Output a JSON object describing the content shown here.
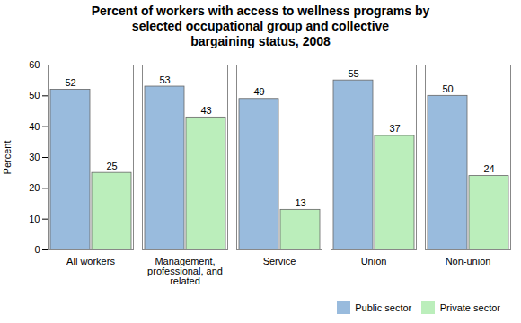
{
  "chart_data": {
    "type": "bar",
    "title": "Percent of workers with access to wellness programs by\nselected occupational group and collective\nbargaining status, 2008",
    "ylabel": "Percent",
    "categories": [
      "All workers",
      "Management,\nprofessional, and\nrelated",
      "Service",
      "Union",
      "Non-union"
    ],
    "series": [
      {
        "name": "Public sector",
        "color": "#99BBDD",
        "values": [
          52,
          53,
          49,
          55,
          50
        ]
      },
      {
        "name": "Private sector",
        "color": "#BBEEBB",
        "values": [
          25,
          43,
          13,
          37,
          24
        ]
      }
    ],
    "ylim": [
      0,
      60
    ],
    "yticks": [
      0,
      10,
      20,
      30,
      40,
      50,
      60
    ],
    "grid": false,
    "legend": "lower right",
    "data_labels": true
  }
}
